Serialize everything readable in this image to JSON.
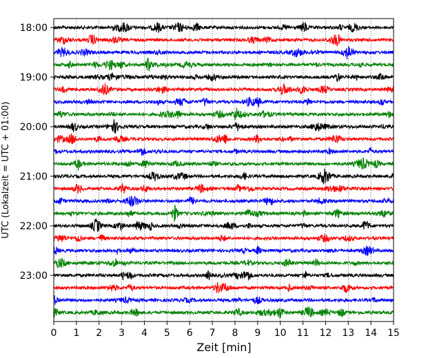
{
  "chart_data": {
    "type": "line",
    "subtype": "helicorder",
    "xlabel": "Zeit  [min]",
    "ylabel": "UTC (Lokalzeit = UTC + 01:00)",
    "xlim": [
      0,
      15
    ],
    "x_ticks": [
      0,
      1,
      2,
      3,
      4,
      5,
      6,
      7,
      8,
      9,
      10,
      11,
      12,
      13,
      14,
      15
    ],
    "y_ticks": [
      "18:00",
      "19:00",
      "20:00",
      "21:00",
      "22:00",
      "23:00"
    ],
    "trace_interval_minutes": 15,
    "start_time": "18:00",
    "trace_count": 24,
    "grid": {
      "vertical": true,
      "style": "dotted"
    },
    "colors": [
      "#000000",
      "#ff0000",
      "#0000ff",
      "#008000"
    ]
  }
}
